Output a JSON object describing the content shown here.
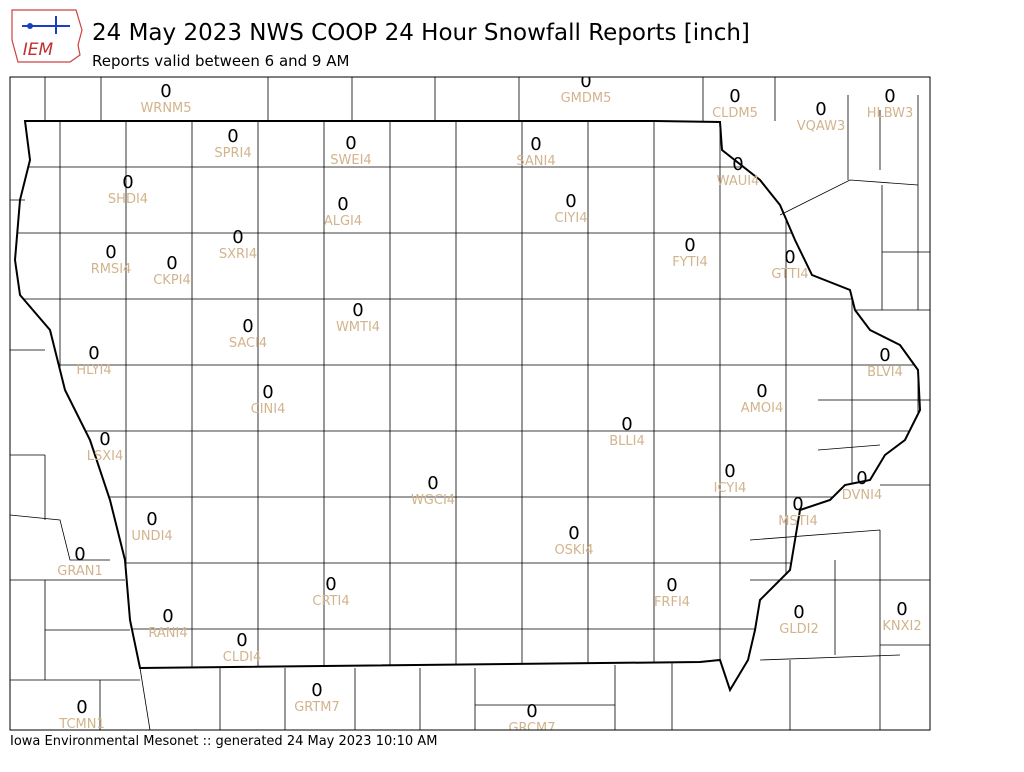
{
  "logo_text": "IEM",
  "title": "24 May 2023 NWS COOP 24 Hour Snowfall Reports [inch]",
  "subtitle": "Reports valid between 6 and 9 AM",
  "footer": "Iowa Environmental Mesonet :: generated 24 May 2023 10:10 AM",
  "stations": [
    {
      "id": "WRNM5",
      "value": 0
    },
    {
      "id": "GMDM5",
      "value": 0
    },
    {
      "id": "CLDM5",
      "value": 0
    },
    {
      "id": "VQAW3",
      "value": 0
    },
    {
      "id": "HLBW3",
      "value": 0
    },
    {
      "id": "SPRI4",
      "value": 0
    },
    {
      "id": "SWEI4",
      "value": 0
    },
    {
      "id": "SANI4",
      "value": 0
    },
    {
      "id": "WAUI4",
      "value": 0
    },
    {
      "id": "SHDI4",
      "value": 0
    },
    {
      "id": "ALGI4",
      "value": 0
    },
    {
      "id": "CIYI4",
      "value": 0
    },
    {
      "id": "FYTI4",
      "value": 0
    },
    {
      "id": "GTTI4",
      "value": 0
    },
    {
      "id": "RMSI4",
      "value": 0
    },
    {
      "id": "CKPI4",
      "value": 0
    },
    {
      "id": "SXRI4",
      "value": 0
    },
    {
      "id": "WMTI4",
      "value": 0
    },
    {
      "id": "SACI4",
      "value": 0
    },
    {
      "id": "HLYI4",
      "value": 0
    },
    {
      "id": "BLVI4",
      "value": 0
    },
    {
      "id": "CINI4",
      "value": 0
    },
    {
      "id": "AMOI4",
      "value": 0
    },
    {
      "id": "BLLI4",
      "value": 0
    },
    {
      "id": "LSXI4",
      "value": 0
    },
    {
      "id": "ICYI4",
      "value": 0
    },
    {
      "id": "DVNI4",
      "value": 0
    },
    {
      "id": "WGCI4",
      "value": 0
    },
    {
      "id": "MSTI4",
      "value": 0
    },
    {
      "id": "UNDI4",
      "value": 0
    },
    {
      "id": "OSKI4",
      "value": 0
    },
    {
      "id": "GRAN1",
      "value": 0
    },
    {
      "id": "CRTI4",
      "value": 0
    },
    {
      "id": "FRFI4",
      "value": 0
    },
    {
      "id": "KNXI2",
      "value": 0
    },
    {
      "id": "GLDI2",
      "value": 0
    },
    {
      "id": "RANI4",
      "value": 0
    },
    {
      "id": "CLDI4",
      "value": 0
    },
    {
      "id": "GRTM7",
      "value": 0
    },
    {
      "id": "GRCM7",
      "value": 0
    },
    {
      "id": "TCMN1",
      "value": 0
    }
  ]
}
